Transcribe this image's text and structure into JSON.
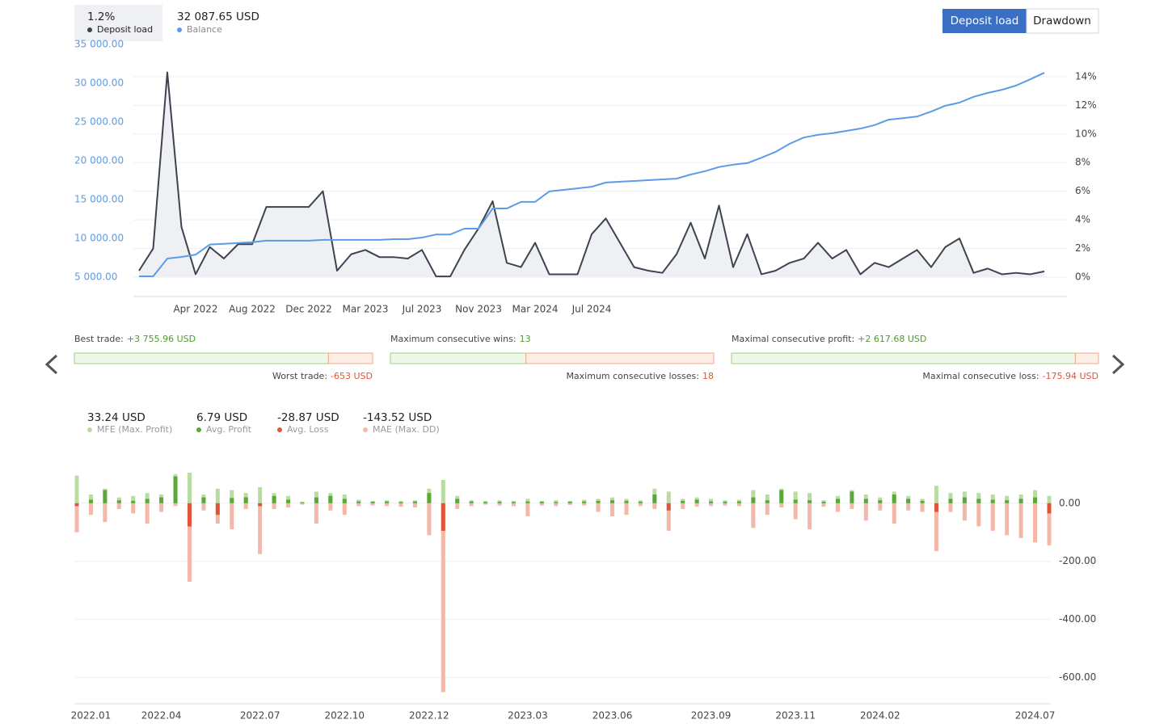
{
  "header": {
    "buttons": [
      "Deposit load",
      "Drawdown"
    ]
  },
  "stats": [
    {
      "top_label": "Best trade:",
      "top_value": 3755.96,
      "top_text": "+3 755.96 USD",
      "bottom_label": "Worst trade:",
      "bottom_value": -653,
      "bottom_text": "-653 USD"
    },
    {
      "top_label": "Maximum consecutive wins:",
      "top_value": 13,
      "top_text": "13",
      "bottom_label": "Maximum consecutive losses:",
      "bottom_value": 18,
      "bottom_text": "18"
    },
    {
      "top_label": "Maximal consecutive profit:",
      "top_value": 2617.68,
      "top_text": "+2 617.68 USD",
      "bottom_label": "Maximal consecutive loss:",
      "bottom_value": -175.94,
      "bottom_text": "-175.94 USD"
    }
  ],
  "chart_data": [
    {
      "type": "line",
      "categories": [
        null,
        null,
        null,
        null,
        "Apr 2022",
        null,
        null,
        null,
        "Aug 2022",
        null,
        null,
        null,
        "Dec 2022",
        null,
        null,
        null,
        "Mar 2023",
        null,
        null,
        null,
        "Jul 2023",
        null,
        null,
        null,
        "Nov 2023",
        null,
        null,
        null,
        "Mar 2024",
        null,
        null,
        null,
        "Jul 2024",
        null,
        null,
        null,
        null,
        null,
        null,
        null,
        null,
        null,
        null,
        null,
        null,
        null,
        null,
        null,
        null,
        null,
        null,
        null,
        null,
        null,
        null,
        null,
        null,
        null,
        null,
        null,
        null,
        null,
        null,
        null,
        null
      ],
      "series": [
        {
          "name": "Deposit load",
          "current": "1.2%",
          "color": "#3d4450",
          "fill": "#eef0f3",
          "axis": "y2",
          "values": [
            0.45,
            2.0,
            14.3,
            3.5,
            0.2,
            2.1,
            1.3,
            2.3,
            2.3,
            4.9,
            4.9,
            4.9,
            4.9,
            6.0,
            0.45,
            1.6,
            1.9,
            1.4,
            1.4,
            1.3,
            1.9,
            0.05,
            0.05,
            1.9,
            3.4,
            5.3,
            1.0,
            0.7,
            2.4,
            0.2,
            0.2,
            0.2,
            3.0,
            4.1,
            2.4,
            0.7,
            0.45,
            0.3,
            1.6,
            3.8,
            1.3,
            5.0,
            0.7,
            3.0,
            0.2,
            0.45,
            1.0,
            1.3,
            2.4,
            1.3,
            1.9,
            0.2,
            1.0,
            0.7,
            1.3,
            1.9,
            0.7,
            2.1,
            2.7,
            0.3,
            0.6,
            0.2,
            0.3,
            0.2,
            0.4
          ]
        },
        {
          "name": "Balance",
          "current": "32 087.65 USD",
          "color": "#5b9be8",
          "values": [
            5100,
            5100,
            7400,
            7600,
            7900,
            9200,
            9300,
            9400,
            9500,
            9700,
            9700,
            9700,
            9700,
            9800,
            9800,
            9800,
            9800,
            9800,
            9900,
            9900,
            10100,
            10500,
            10500,
            11250,
            11250,
            13850,
            13850,
            14700,
            14700,
            16050,
            16250,
            16450,
            16650,
            17200,
            17300,
            17400,
            17500,
            17600,
            17700,
            18230,
            18650,
            19200,
            19500,
            19700,
            20400,
            21150,
            22200,
            23000,
            23350,
            23550,
            23850,
            24150,
            24600,
            25300,
            25500,
            25700,
            26350,
            27100,
            27500,
            28250,
            28750,
            29150,
            29700,
            30500,
            31350
          ]
        }
      ],
      "ylim": [
        5000,
        35000
      ],
      "yticks": [
        {
          "value": 5000,
          "label": "5 000.00"
        },
        {
          "value": 10000,
          "label": "10 000.00"
        },
        {
          "value": 15000,
          "label": "15 000.00"
        },
        {
          "value": 20000,
          "label": "20 000.00"
        },
        {
          "value": 25000,
          "label": "25 000.00"
        },
        {
          "value": 30000,
          "label": "30 000.00"
        },
        {
          "value": 35000,
          "label": "35 000.00"
        }
      ],
      "y2lim": [
        0,
        16.25
      ],
      "y2ticks": [
        {
          "value": 0,
          "label": "0%"
        },
        {
          "value": 2,
          "label": "2%"
        },
        {
          "value": 4,
          "label": "4%"
        },
        {
          "value": 6,
          "label": "6%"
        },
        {
          "value": 8,
          "label": "8%"
        },
        {
          "value": 10,
          "label": "10%"
        },
        {
          "value": 12,
          "label": "12%"
        },
        {
          "value": 14,
          "label": "14%"
        }
      ],
      "grid": true
    },
    {
      "type": "bar",
      "categories": [
        null,
        "2022.01",
        null,
        null,
        null,
        null,
        "2022.04",
        null,
        null,
        null,
        null,
        null,
        null,
        "2022.07",
        null,
        null,
        null,
        null,
        null,
        "2022.10",
        null,
        null,
        null,
        null,
        null,
        "2022.12",
        null,
        null,
        null,
        null,
        null,
        null,
        "2023.03",
        null,
        null,
        null,
        null,
        null,
        "2023.06",
        null,
        null,
        null,
        null,
        null,
        null,
        "2023.09",
        null,
        null,
        null,
        null,
        null,
        "2023.11",
        null,
        null,
        null,
        null,
        null,
        "2024.02",
        null,
        null,
        null,
        null,
        null,
        null,
        null,
        null,
        null,
        null,
        "2024.07",
        null
      ],
      "series": [
        {
          "name": "MFE (Max. Profit)",
          "current": "33.24 USD",
          "color": "#b9dca3",
          "values": [
            95,
            30,
            50,
            20,
            25,
            35,
            30,
            100,
            105,
            30,
            50,
            45,
            35,
            55,
            35,
            25,
            5,
            40,
            35,
            30,
            12,
            8,
            10,
            8,
            10,
            50,
            80,
            25,
            10,
            8,
            10,
            8,
            15,
            8,
            10,
            8,
            12,
            15,
            20,
            15,
            10,
            50,
            40,
            15,
            20,
            15,
            10,
            12,
            45,
            30,
            50,
            40,
            35,
            10,
            25,
            45,
            30,
            20,
            40,
            25,
            15,
            60,
            35,
            40,
            35,
            30,
            25,
            30,
            45,
            25
          ]
        },
        {
          "name": "Avg. Profit",
          "current": "6.79 USD",
          "color": "#5aa83a",
          "values": [
            null,
            12,
            45,
            10,
            8,
            15,
            20,
            92,
            null,
            20,
            null,
            18,
            20,
            null,
            25,
            12,
            3,
            20,
            25,
            15,
            6,
            5,
            6,
            4,
            6,
            35,
            null,
            15,
            6,
            4,
            5,
            4,
            6,
            5,
            4,
            5,
            6,
            8,
            10,
            8,
            5,
            30,
            null,
            8,
            12,
            6,
            5,
            6,
            20,
            10,
            45,
            12,
            10,
            5,
            15,
            40,
            15,
            10,
            30,
            15,
            8,
            null,
            15,
            20,
            15,
            12,
            10,
            15,
            20,
            null
          ]
        },
        {
          "name": "Avg. Loss",
          "current": "-28.87 USD",
          "color": "#e0553a",
          "values": [
            -10,
            null,
            null,
            null,
            null,
            null,
            null,
            null,
            -80,
            null,
            -40,
            null,
            null,
            -10,
            null,
            null,
            null,
            null,
            null,
            null,
            null,
            null,
            null,
            null,
            null,
            null,
            -95,
            null,
            null,
            null,
            null,
            null,
            null,
            null,
            null,
            null,
            null,
            null,
            null,
            null,
            null,
            null,
            -25,
            null,
            null,
            null,
            null,
            null,
            null,
            null,
            null,
            null,
            null,
            null,
            null,
            null,
            null,
            null,
            null,
            null,
            null,
            -30,
            null,
            null,
            null,
            null,
            null,
            null,
            null,
            -35
          ]
        },
        {
          "name": "MAE (Max. DD)",
          "current": "-143.52 USD",
          "color": "#f4b8a8",
          "values": [
            -100,
            -40,
            -65,
            -20,
            -35,
            -70,
            -30,
            -10,
            -270,
            -25,
            -70,
            -90,
            -20,
            -175,
            -20,
            -15,
            -5,
            -70,
            -25,
            -40,
            -10,
            -8,
            -10,
            -12,
            -15,
            -110,
            -650,
            -20,
            -10,
            -5,
            -8,
            -10,
            -45,
            -8,
            -10,
            -6,
            -8,
            -30,
            -45,
            -40,
            -10,
            -20,
            -95,
            -20,
            -12,
            -10,
            -8,
            -10,
            -85,
            -40,
            -15,
            -55,
            -90,
            -12,
            -30,
            -20,
            -60,
            -25,
            -70,
            -25,
            -30,
            -165,
            -30,
            -60,
            -80,
            -95,
            -110,
            -120,
            -135,
            -145
          ]
        }
      ],
      "ylim": [
        -690,
        105
      ],
      "yticks": [
        {
          "value": -600,
          "label": "-600.00"
        },
        {
          "value": -400,
          "label": "-400.00"
        },
        {
          "value": -200,
          "label": "-200.00"
        },
        {
          "value": 0,
          "label": "0.00"
        }
      ],
      "grid": true
    }
  ]
}
